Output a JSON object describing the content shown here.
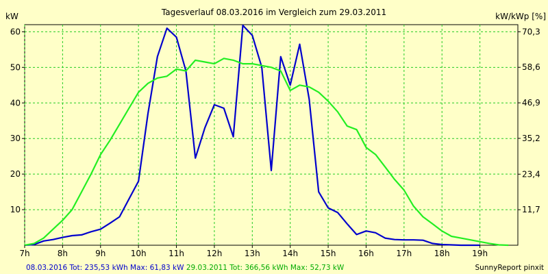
{
  "chart_data": {
    "type": "line",
    "title": "Tagesverlauf 08.03.2016 im Vergleich zum 29.03.2011",
    "ylabel_left": "kW",
    "ylabel_right": "kW/kWp [%]",
    "xlim": [
      7,
      20
    ],
    "ylim": [
      0,
      62
    ],
    "x_ticks": [
      7,
      8,
      9,
      10,
      11,
      12,
      13,
      14,
      15,
      16,
      17,
      18,
      19
    ],
    "x_tick_labels": [
      "7h",
      "8h",
      "9h",
      "10h",
      "11h",
      "12h",
      "13h",
      "14h",
      "15h",
      "16h",
      "17h",
      "18h",
      "19h"
    ],
    "y_ticks": [
      10,
      20,
      30,
      40,
      50,
      60
    ],
    "y_tick_labels": [
      "10",
      "20",
      "30",
      "40",
      "50",
      "60"
    ],
    "y2_ticks": [
      11.7,
      23.4,
      35.2,
      46.9,
      58.6,
      70.3
    ],
    "y2_tick_labels": [
      "11,7",
      "23,4",
      "35,2",
      "46,9",
      "58,6",
      "70,3"
    ],
    "grid": true,
    "series": [
      {
        "name": "08.03.2016",
        "color": "#0000cc",
        "x": [
          7.0,
          7.25,
          7.5,
          7.75,
          8.0,
          8.25,
          8.5,
          8.75,
          9.0,
          9.25,
          9.5,
          9.75,
          10.0,
          10.25,
          10.5,
          10.75,
          11.0,
          11.25,
          11.5,
          11.75,
          12.0,
          12.25,
          12.5,
          12.75,
          13.0,
          13.25,
          13.5,
          13.75,
          14.0,
          14.25,
          14.5,
          14.75,
          15.0,
          15.25,
          15.5,
          15.75,
          16.0,
          16.25,
          16.5,
          16.75,
          17.0,
          17.25,
          17.5,
          17.75,
          18.0,
          18.25,
          18.5,
          18.75,
          19.0
        ],
        "y": [
          0,
          0.2,
          1.2,
          1.6,
          2.2,
          2.7,
          2.9,
          3.8,
          4.5,
          6.2,
          8.0,
          13.0,
          18.0,
          37.0,
          53.0,
          61.0,
          58.5,
          49.0,
          24.5,
          33.0,
          39.5,
          38.5,
          30.5,
          61.8,
          59.0,
          50.0,
          21.0,
          53.0,
          45.0,
          56.5,
          41.0,
          15.0,
          10.5,
          9.2,
          6.0,
          3.0,
          4.0,
          3.5,
          2.0,
          1.6,
          1.5,
          1.5,
          1.4,
          0.5,
          0.2,
          0.1,
          0,
          0,
          0
        ]
      },
      {
        "name": "29.03.2011",
        "color": "#22ee22",
        "x": [
          7.0,
          7.25,
          7.5,
          7.75,
          8.0,
          8.25,
          8.5,
          8.75,
          9.0,
          9.25,
          9.5,
          9.75,
          10.0,
          10.25,
          10.5,
          10.75,
          11.0,
          11.25,
          11.5,
          11.75,
          12.0,
          12.25,
          12.5,
          12.75,
          13.0,
          13.25,
          13.5,
          13.75,
          14.0,
          14.25,
          14.5,
          14.75,
          15.0,
          15.25,
          15.5,
          15.75,
          16.0,
          16.25,
          16.5,
          16.75,
          17.0,
          17.25,
          17.5,
          17.75,
          18.0,
          18.25,
          18.5,
          18.75,
          19.0,
          19.25,
          19.5,
          19.75
        ],
        "y": [
          0,
          0.5,
          2.0,
          4.5,
          7.0,
          10.0,
          15.0,
          20.0,
          25.5,
          29.5,
          34.0,
          38.5,
          43.0,
          45.5,
          47.0,
          47.5,
          49.5,
          49.0,
          52.0,
          51.5,
          51.0,
          52.5,
          52.0,
          51.0,
          51.0,
          50.5,
          50.0,
          49.0,
          43.5,
          45.0,
          44.5,
          43.0,
          40.5,
          37.5,
          33.5,
          32.5,
          27.5,
          25.5,
          22.0,
          18.5,
          15.5,
          11.0,
          8.0,
          6.0,
          4.0,
          2.5,
          2.0,
          1.5,
          1.0,
          0.5,
          0.1,
          0
        ]
      }
    ]
  },
  "footer": {
    "blue_text": "08.03.2016 Tot: 235,53 kWh Max: 61,83 kW",
    "green_text": " 29.03.2011 Tot: 366,56 kWh Max: 52,73 kW",
    "credit": "SunnyReport pinxit"
  }
}
